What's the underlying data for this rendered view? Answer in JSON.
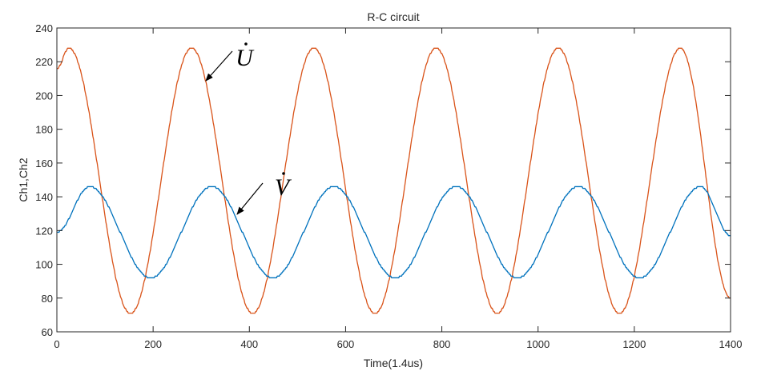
{
  "chart_data": {
    "type": "line",
    "title": "R-C circuit",
    "xlabel": "Time(1.4us)",
    "ylabel": "Ch1,Ch2",
    "xlim": [
      0,
      1400
    ],
    "ylim": [
      60,
      240
    ],
    "xticks": [
      0,
      200,
      400,
      600,
      800,
      1000,
      1200,
      1400
    ],
    "yticks": [
      60,
      80,
      100,
      120,
      140,
      160,
      180,
      200,
      220,
      240
    ],
    "grid": false,
    "series": [
      {
        "name": "U",
        "color": "#D95319",
        "x": [
          0,
          25,
          153,
          280,
          407,
          534,
          661,
          788,
          915,
          1042,
          1169,
          1296,
          1400
        ],
        "y": [
          216,
          228,
          71,
          228,
          71,
          228,
          71,
          228,
          71,
          228,
          71,
          228,
          80
        ]
      },
      {
        "name": "V",
        "color": "#0072BD",
        "x": [
          0,
          68,
          195,
          322,
          449,
          576,
          703,
          830,
          957,
          1084,
          1211,
          1338,
          1400
        ],
        "y": [
          119,
          146,
          92,
          146,
          92,
          146,
          92,
          146,
          92,
          146,
          92,
          146,
          117
        ]
      }
    ],
    "annotations": [
      {
        "text": "U",
        "diacritic": "dot",
        "points_to_series": "U",
        "target": [
          315,
          208
        ]
      },
      {
        "text": "V",
        "diacritic": "dot",
        "points_to_series": "V",
        "target": [
          378,
          128
        ]
      }
    ]
  }
}
